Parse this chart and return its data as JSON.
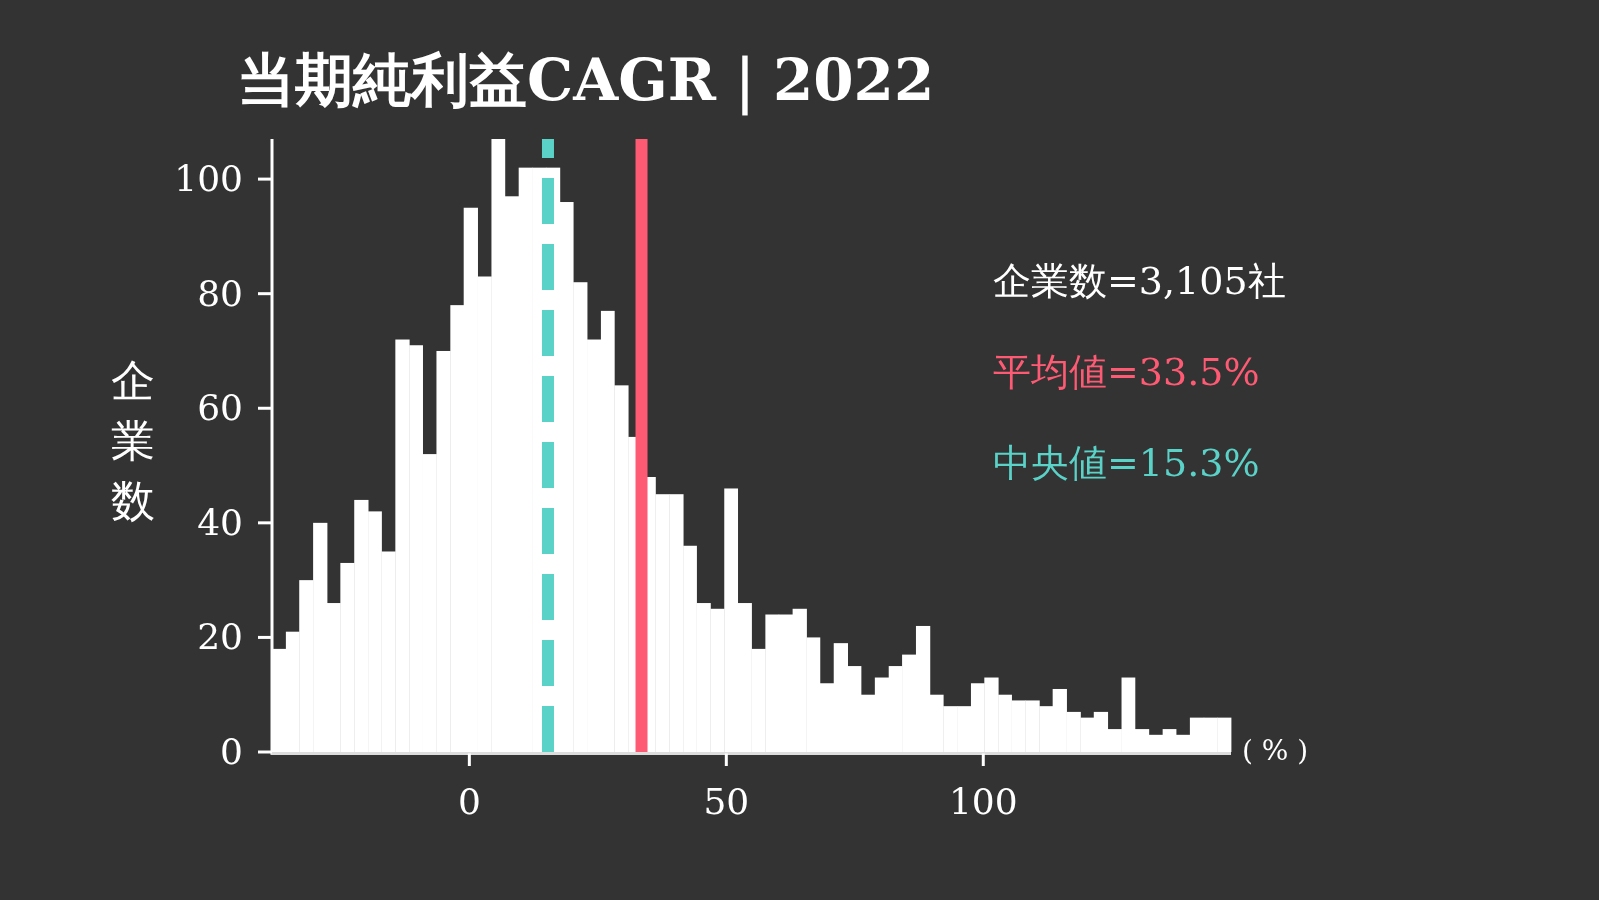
{
  "chart_data": {
    "type": "histogram",
    "title": "当期純利益CAGR｜2022",
    "xlabel": "( % )",
    "ylabel": "企業数",
    "color": "#ffffff",
    "bins": [
      -38.4,
      -35.7,
      -33.1,
      -30.4,
      -27.7,
      -25.1,
      -22.4,
      -19.7,
      -17.1,
      -14.4,
      -11.7,
      -9.1,
      -6.4,
      -3.7,
      -1.1,
      1.6,
      4.3,
      6.9,
      9.6,
      12.2,
      14.9,
      17.6,
      20.2,
      22.9,
      25.6,
      28.2,
      30.9,
      33.6,
      36.2,
      38.9,
      41.6,
      44.2,
      46.9,
      49.6,
      52.2,
      54.9,
      57.6,
      60.2,
      62.9,
      65.6,
      68.2,
      70.9,
      73.6,
      76.2,
      78.9,
      81.6,
      84.2,
      86.9,
      89.6,
      92.2,
      94.9,
      97.6,
      100.2,
      102.9,
      105.5,
      108.2,
      110.9,
      113.5,
      116.2,
      118.9,
      121.5,
      124.2,
      126.9,
      129.5,
      132.2,
      134.9,
      137.5,
      140.2,
      142.9,
      145.5,
      148.2
    ],
    "values": [
      18,
      21,
      30,
      40,
      26,
      33,
      44,
      42,
      35,
      72,
      71,
      52,
      70,
      78,
      95,
      83,
      107,
      97,
      102,
      102,
      102,
      96,
      82,
      72,
      77,
      64,
      55,
      48,
      45,
      45,
      36,
      26,
      25,
      46,
      26,
      18,
      24,
      24,
      25,
      20,
      12,
      19,
      15,
      10,
      13,
      15,
      17,
      22,
      10,
      8,
      8,
      12,
      13,
      10,
      9,
      9,
      8,
      11,
      7,
      6,
      7,
      4,
      13,
      4,
      3,
      4,
      3,
      6,
      6,
      6
    ],
    "xlim": [
      -38.4,
      148.2
    ],
    "ylim": [
      0,
      107
    ],
    "xticks": [
      0,
      50,
      100
    ],
    "yticks": [
      0,
      20,
      40,
      60,
      80,
      100
    ],
    "ref_lines": [
      {
        "axis": "x",
        "value": 33.5,
        "label": "平均値=33.5%",
        "color": "#ff5a73",
        "line_style": "solid"
      },
      {
        "axis": "x",
        "value": 15.3,
        "label": "中央値=15.3%",
        "color": "#5ad2c8",
        "line_style": "dashed"
      }
    ],
    "annotations": [
      "企業数=3,105社"
    ]
  }
}
